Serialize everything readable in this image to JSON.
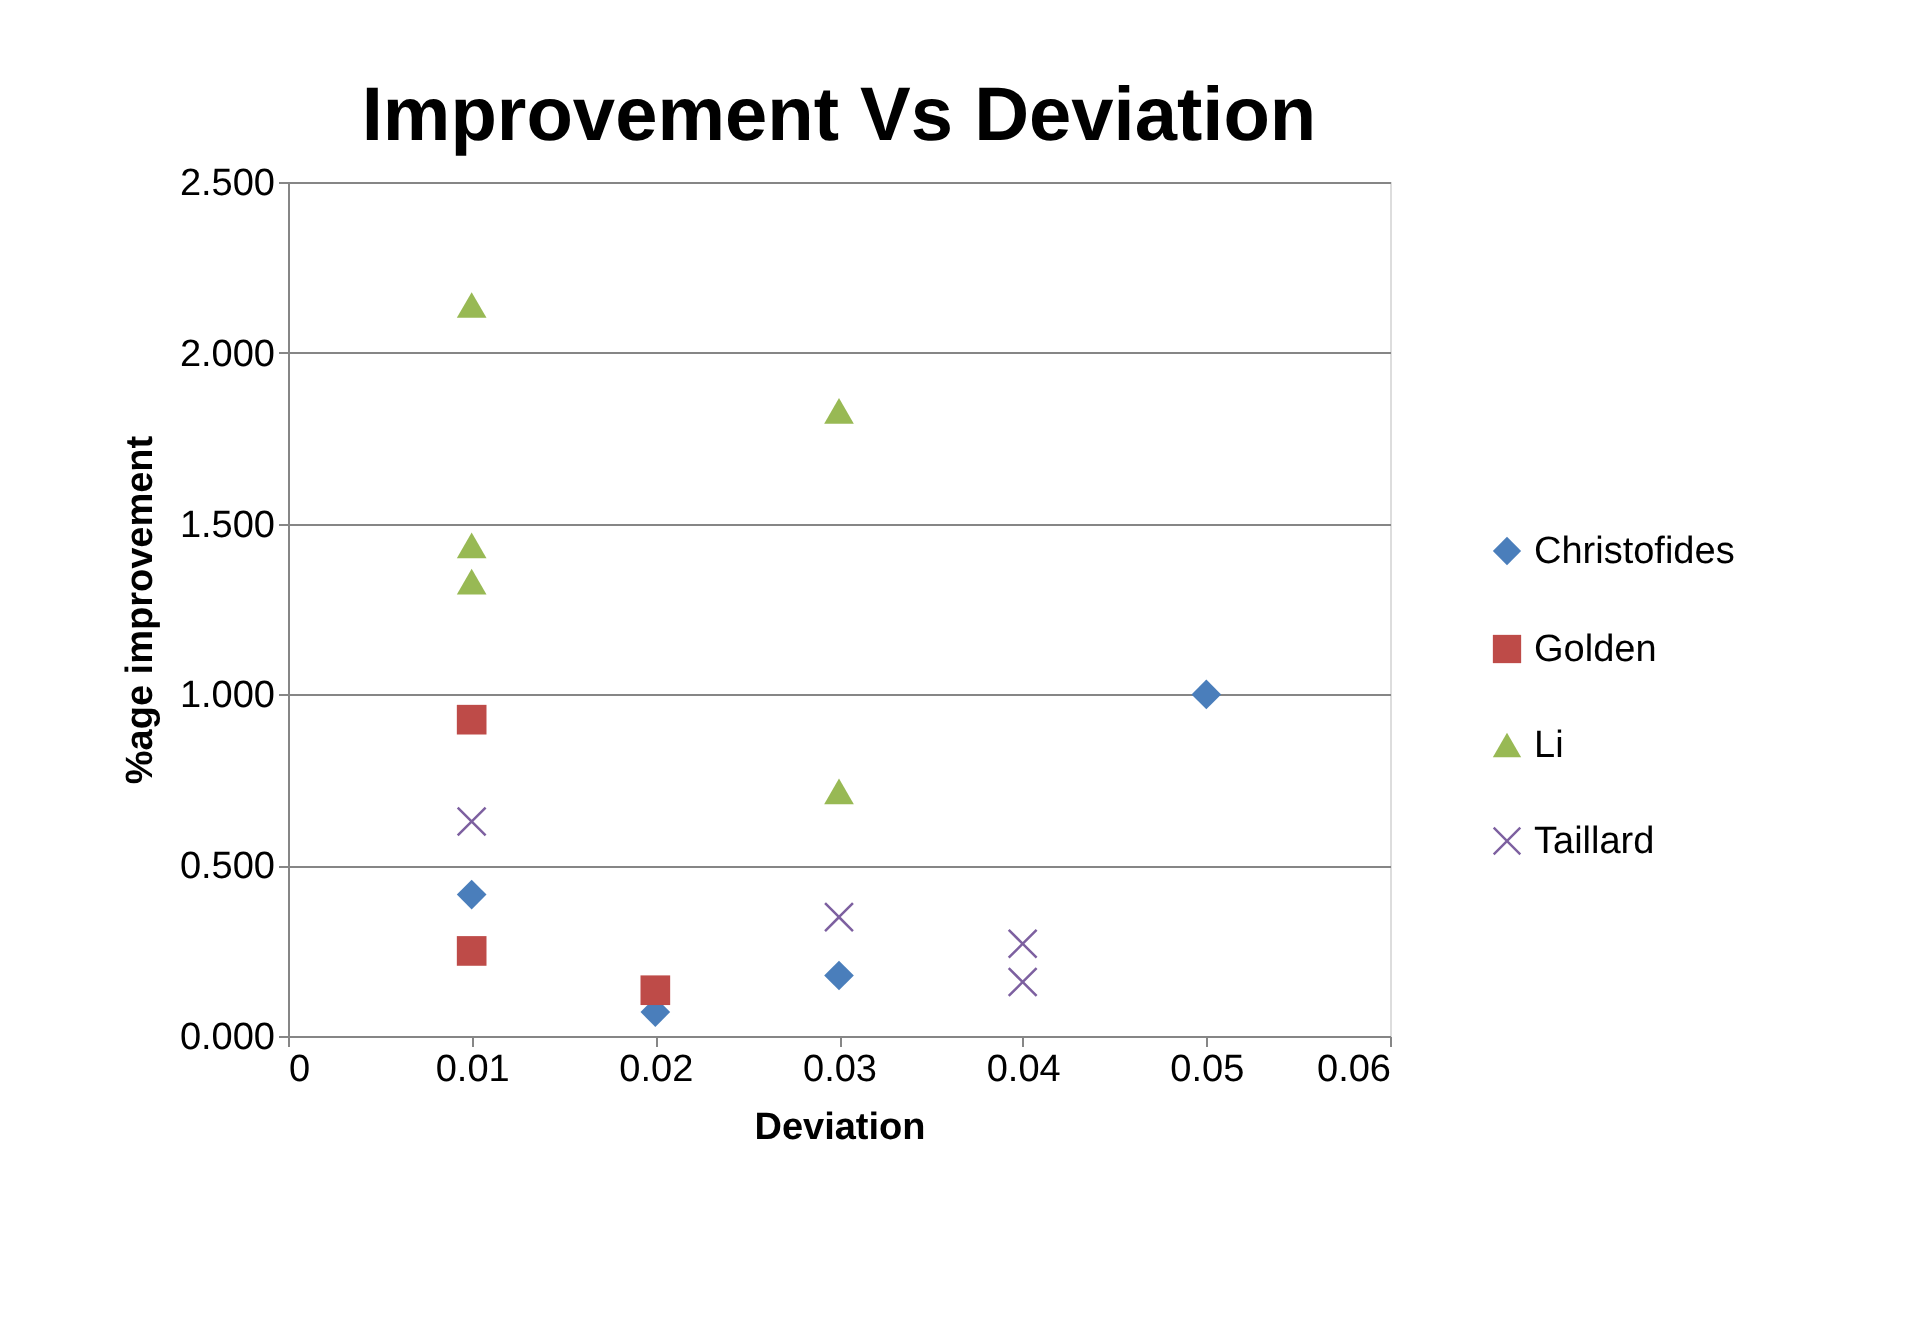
{
  "chart_data": {
    "type": "scatter",
    "title": "Improvement Vs Deviation",
    "xlabel": "Deviation",
    "ylabel": "%age improvement",
    "xlim": [
      0,
      0.06
    ],
    "xticks": [
      {
        "value": 0,
        "label": "0"
      },
      0.01,
      0.02,
      0.03,
      0.04,
      0.05,
      0.06
    ],
    "ylim": [
      0,
      2.5
    ],
    "yticks": [
      {
        "value": 0,
        "label": "0.000"
      },
      {
        "value": 0.5,
        "label": "0.500"
      },
      {
        "value": 1,
        "label": "1.000"
      },
      {
        "value": 1.5,
        "label": "1.500"
      },
      {
        "value": 2,
        "label": "2.000"
      },
      {
        "value": 2.5,
        "label": "2.500"
      }
    ],
    "grid": "y",
    "legend": "right",
    "series": [
      {
        "name": "Christofides",
        "color": "#4a7ebb",
        "marker": "diamond",
        "x": [
          0.01,
          0.02,
          0.03,
          0.05
        ],
        "values": [
          0.414,
          0.07,
          0.177,
          1.0
        ]
      },
      {
        "name": "Golden",
        "color": "#be4b48",
        "marker": "square",
        "x": [
          0.01,
          0.01,
          0.02
        ],
        "values": [
          0.926,
          0.249,
          0.134
        ]
      },
      {
        "name": "Li",
        "color": "#98b954",
        "marker": "triangle",
        "x": [
          0.01,
          0.01,
          0.01,
          0.03,
          0.03
        ],
        "values": [
          2.14,
          1.436,
          1.33,
          1.83,
          0.716
        ]
      },
      {
        "name": "Taillard",
        "color": "#7d60a0",
        "marker": "cross",
        "x": [
          0.01,
          0.03,
          0.04,
          0.04
        ],
        "values": [
          0.628,
          0.348,
          0.27,
          0.158
        ]
      }
    ]
  }
}
